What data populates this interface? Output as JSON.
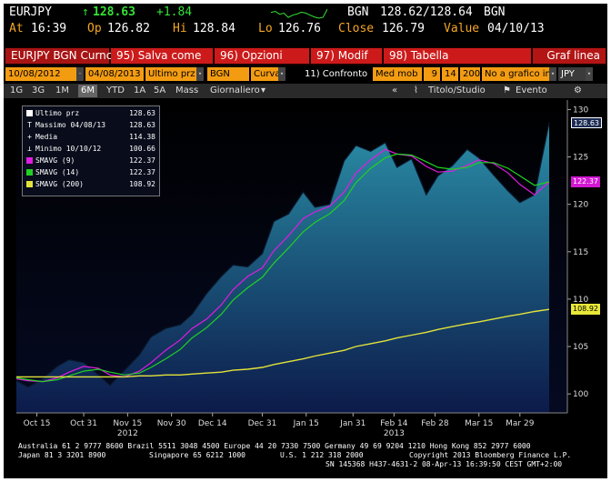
{
  "header": {
    "ticker": "EURJPY",
    "arrow": "↑",
    "last": "128.63",
    "change": "+1.84",
    "bgn_label": "BGN",
    "bid_ask": "128.62/128.64",
    "bgn_label2": "BGN",
    "at_label": "At",
    "at_time": "16:39",
    "op_label": "Op",
    "op_value": "126.82",
    "hi_label": "Hi",
    "hi_value": "128.84",
    "lo_label": "Lo",
    "lo_value": "126.76",
    "close_label": "Close",
    "close_value": "126.79",
    "value_label": "Value",
    "value_date": "04/10/13"
  },
  "menu": {
    "security": "EURJPY BGN Curnc",
    "save_as": "95) Salva come",
    "options": "96) Opzioni",
    "modify": "97) Modif",
    "table": "98) Tabella",
    "chart_name": "Graf linea"
  },
  "params": {
    "start_date": "10/08/2012",
    "end_date": "04/08/2013",
    "price_field": "Ultimo prz",
    "source": "BGN",
    "style": "Curva",
    "compare": "11) Confronto",
    "ma_label": "Med mob",
    "ma1": "9",
    "ma2": "14",
    "ma3": "200",
    "no_chart": "No a grafico info",
    "currency": "JPY"
  },
  "periods": {
    "items": [
      "1G",
      "3G",
      "1M",
      "6M",
      "YTD",
      "1A",
      "5A",
      "Mass"
    ],
    "active": "6M",
    "frequency": "Giornaliero",
    "title_study": "Titolo/Studio",
    "event": "Evento"
  },
  "legend": {
    "items": [
      {
        "label": "Ultimo prz",
        "value": "128.63"
      },
      {
        "label": "Massimo 04/08/13",
        "value": "128.63"
      },
      {
        "label": "Media",
        "value": "114.38"
      },
      {
        "label": "Minimo 10/10/12",
        "value": "100.66"
      },
      {
        "label": "SMAVG (9)",
        "value": "122.37"
      },
      {
        "label": "SMAVG (14)",
        "value": "122.37"
      },
      {
        "label": "SMAVG (200)",
        "value": "108.92"
      }
    ]
  },
  "price_tags": {
    "last": "128.63",
    "sma9": "122.37",
    "sma200": "108.92"
  },
  "colors": {
    "price": "#1e6f8f",
    "sma9": "#e01ce0",
    "sma14": "#22d022",
    "sma200": "#e3e33a"
  },
  "chart_data": {
    "type": "area",
    "title": "",
    "xlabel": "",
    "ylabel": "",
    "ylim": [
      98,
      131
    ],
    "yticks": [
      "100",
      "105",
      "110",
      "115",
      "120",
      "125",
      "130"
    ],
    "xticks": [
      "Oct 15",
      "Oct 31",
      "Nov 15",
      "Nov 30",
      "Dec 14",
      "Dec 31",
      "Jan 15",
      "Jan 31",
      "Feb 14",
      "Feb 28",
      "Mar 15",
      "Mar 29"
    ],
    "year_labels": [
      "2012",
      "2013"
    ],
    "x": [
      "10/08/12",
      "10/12/12",
      "10/17/12",
      "10/22/12",
      "10/26/12",
      "10/31/12",
      "11/05/12",
      "11/09/12",
      "11/14/12",
      "11/19/12",
      "11/23/12",
      "11/28/12",
      "12/03/12",
      "12/07/12",
      "12/12/12",
      "12/17/12",
      "12/21/12",
      "12/26/12",
      "12/31/12",
      "01/04/13",
      "01/09/13",
      "01/14/13",
      "01/18/13",
      "01/23/13",
      "01/28/13",
      "02/01/13",
      "02/06/13",
      "02/11/13",
      "02/15/13",
      "02/20/13",
      "02/25/13",
      "03/01/13",
      "03/06/13",
      "03/11/13",
      "03/15/13",
      "03/20/13",
      "03/25/13",
      "03/29/13",
      "04/03/13",
      "04/08/13"
    ],
    "series": [
      {
        "name": "Ultimo prz",
        "values": [
          101.4,
          100.7,
          101.6,
          102.9,
          103.6,
          103.3,
          102.0,
          100.9,
          102.5,
          104.1,
          106.0,
          106.9,
          107.3,
          108.4,
          110.6,
          112.4,
          113.6,
          113.4,
          114.8,
          118.2,
          119.0,
          121.3,
          119.7,
          120.0,
          124.6,
          126.2,
          125.6,
          126.5,
          123.9,
          124.8,
          121.0,
          123.0,
          124.1,
          125.8,
          124.9,
          123.1,
          121.4,
          120.2,
          121.0,
          128.63
        ]
      },
      {
        "name": "SMAVG (9)",
        "values": [
          101.6,
          101.4,
          101.3,
          101.7,
          102.3,
          102.9,
          102.7,
          102.0,
          101.8,
          102.4,
          103.3,
          104.6,
          105.7,
          106.9,
          107.9,
          109.4,
          111.0,
          112.4,
          113.3,
          115.1,
          116.7,
          118.5,
          119.2,
          119.8,
          121.3,
          123.3,
          124.7,
          125.8,
          125.3,
          125.1,
          124.0,
          123.4,
          123.5,
          124.1,
          124.7,
          124.3,
          123.3,
          122.1,
          121.0,
          122.37
        ]
      },
      {
        "name": "SMAVG (14)",
        "values": [
          101.7,
          101.5,
          101.3,
          101.5,
          101.9,
          102.4,
          102.6,
          102.3,
          102.0,
          102.2,
          102.8,
          103.7,
          104.7,
          105.9,
          107.0,
          108.4,
          109.9,
          111.2,
          112.3,
          113.8,
          115.4,
          117.1,
          118.1,
          119.0,
          120.4,
          122.3,
          123.8,
          124.9,
          125.3,
          125.2,
          124.5,
          123.9,
          123.7,
          123.9,
          124.4,
          124.4,
          123.8,
          123.0,
          122.0,
          122.37
        ]
      },
      {
        "name": "SMAVG (200)",
        "values": [
          101.8,
          101.8,
          101.8,
          101.8,
          101.8,
          101.8,
          101.8,
          101.8,
          101.8,
          101.9,
          101.9,
          102.0,
          102.0,
          102.1,
          102.2,
          102.3,
          102.5,
          102.6,
          102.8,
          103.1,
          103.4,
          103.7,
          104.0,
          104.3,
          104.6,
          105.0,
          105.3,
          105.6,
          105.9,
          106.2,
          106.5,
          106.8,
          107.1,
          107.4,
          107.6,
          107.9,
          108.2,
          108.4,
          108.7,
          108.92
        ]
      }
    ],
    "grid": false,
    "legend_position": "top-left"
  },
  "footer": {
    "line1": "Australia 61 2 9777 8600 Brazil 5511 3048 4500 Europe 44 20 7330 7500 Germany 49 69 9204 1210 Hong Kong 852 2977 6000",
    "line2a": "Japan 81 3 3201 8900",
    "line2b": "Singapore 65 6212 1000",
    "line2c": "U.S. 1 212 318 2000",
    "line2d": "Copyright 2013 Bloomberg Finance L.P.",
    "line3": "SN 145368 H437-4631-2 08-Apr-13 16:39:50 CEST GMT+2:00"
  }
}
